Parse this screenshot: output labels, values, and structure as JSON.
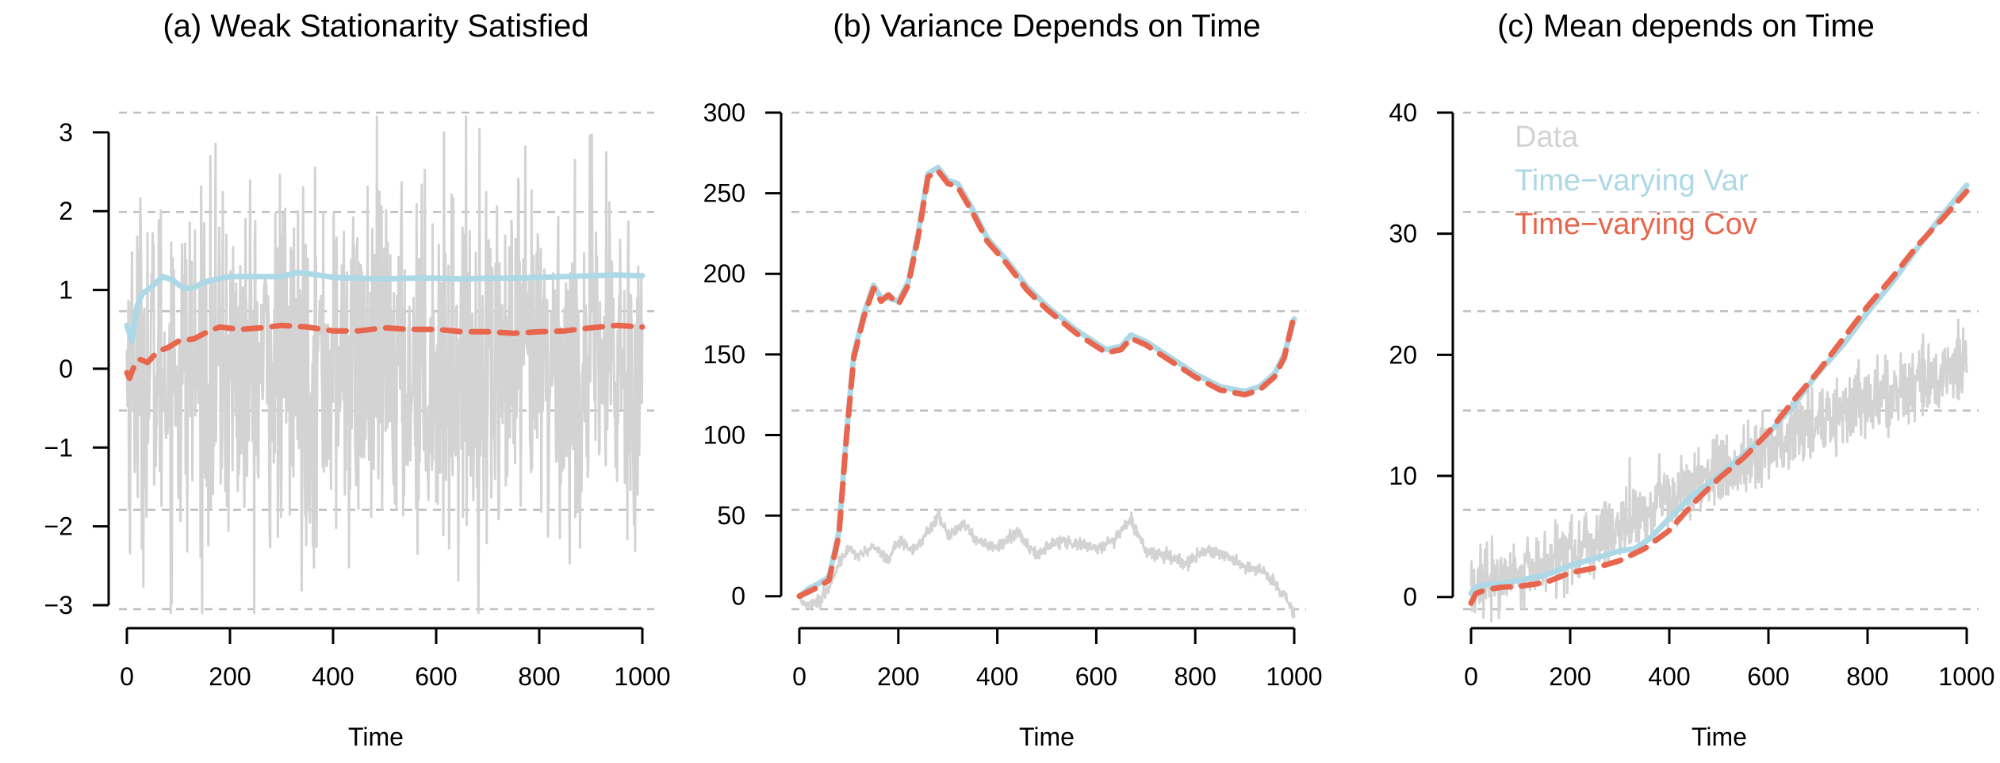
{
  "colors": {
    "data": "#d3d3d3",
    "var": "#add8e6",
    "cov": "#e8664d",
    "grid": "#bfbfbf",
    "axis": "#000000"
  },
  "legend": {
    "placement": "top-left of panel (c)",
    "entries": [
      {
        "label": "Data",
        "color": "#d3d3d3"
      },
      {
        "label": "Time−varying Var",
        "color": "#add8e6"
      },
      {
        "label": "Time−varying Cov",
        "color": "#e8664d"
      }
    ]
  },
  "chart_data": [
    {
      "type": "line",
      "title": "(a) Weak Stationarity Satisfied",
      "xlabel": "Time",
      "ylabel": "",
      "xlim": [
        0,
        1000
      ],
      "ylim": [
        -3.05,
        3.25
      ],
      "x_ticks": [
        "0",
        "200",
        "400",
        "600",
        "800",
        "1000"
      ],
      "y_ticks": [
        "−3",
        "−2",
        "−1",
        "0",
        "1",
        "2",
        "3"
      ],
      "grid": "horizontal dashed",
      "data_series": {
        "name": "Data",
        "kind": "noise",
        "mean": 0,
        "sd": 1.1,
        "range": [
          -3.1,
          3.2
        ]
      },
      "series": [
        {
          "name": "Time−varying Var",
          "style": "solid",
          "x": [
            0,
            10,
            20,
            30,
            50,
            70,
            90,
            110,
            130,
            150,
            170,
            200,
            250,
            300,
            330,
            360,
            400,
            450,
            500,
            550,
            600,
            650,
            700,
            750,
            800,
            850,
            900,
            950,
            1000
          ],
          "values": [
            0.55,
            0.35,
            0.8,
            0.95,
            1.05,
            1.17,
            1.12,
            1.02,
            1.03,
            1.1,
            1.13,
            1.17,
            1.17,
            1.17,
            1.22,
            1.2,
            1.16,
            1.15,
            1.14,
            1.15,
            1.15,
            1.14,
            1.15,
            1.15,
            1.16,
            1.17,
            1.18,
            1.19,
            1.18
          ]
        },
        {
          "name": "Time−varying Cov",
          "style": "dashed",
          "x": [
            0,
            5,
            15,
            25,
            40,
            60,
            80,
            100,
            130,
            160,
            180,
            220,
            260,
            300,
            350,
            400,
            450,
            500,
            550,
            600,
            650,
            700,
            750,
            800,
            850,
            900,
            950,
            1000
          ],
          "values": [
            -0.05,
            -0.12,
            0.05,
            0.12,
            0.08,
            0.22,
            0.27,
            0.35,
            0.38,
            0.48,
            0.53,
            0.5,
            0.52,
            0.55,
            0.53,
            0.48,
            0.48,
            0.52,
            0.5,
            0.5,
            0.47,
            0.47,
            0.45,
            0.47,
            0.48,
            0.52,
            0.55,
            0.53
          ]
        }
      ]
    },
    {
      "type": "line",
      "title": "(b) Variance Depends on Time",
      "xlabel": "Time",
      "ylabel": "",
      "xlim": [
        0,
        1000
      ],
      "ylim": [
        -8,
        300
      ],
      "x_ticks": [
        "0",
        "200",
        "400",
        "600",
        "800",
        "1000"
      ],
      "y_ticks": [
        "0",
        "50",
        "100",
        "150",
        "200",
        "250",
        "300"
      ],
      "grid": "horizontal dashed",
      "data_series": {
        "name": "Data",
        "kind": "random walk",
        "x": [
          0,
          20,
          40,
          60,
          80,
          100,
          120,
          150,
          180,
          200,
          230,
          260,
          280,
          300,
          330,
          360,
          400,
          440,
          480,
          520,
          560,
          600,
          640,
          670,
          700,
          740,
          780,
          820,
          860,
          900,
          940,
          960,
          980,
          1000
        ],
        "values": [
          -2,
          -5,
          -3,
          5,
          20,
          30,
          25,
          32,
          22,
          35,
          28,
          40,
          50,
          38,
          45,
          35,
          30,
          40,
          25,
          35,
          33,
          30,
          35,
          48,
          28,
          25,
          20,
          28,
          25,
          18,
          15,
          8,
          0,
          -10
        ]
      },
      "series": [
        {
          "name": "Time−varying Var",
          "style": "solid",
          "x": [
            0,
            20,
            40,
            60,
            80,
            95,
            110,
            130,
            150,
            165,
            180,
            200,
            220,
            240,
            260,
            280,
            300,
            320,
            350,
            380,
            420,
            460,
            500,
            560,
            620,
            650,
            670,
            700,
            750,
            800,
            850,
            900,
            930,
            960,
            980,
            1000
          ],
          "values": [
            0,
            5,
            8,
            12,
            40,
            100,
            150,
            175,
            193,
            185,
            185,
            183,
            195,
            225,
            262,
            266,
            258,
            256,
            240,
            222,
            208,
            192,
            180,
            165,
            153,
            155,
            162,
            158,
            148,
            138,
            130,
            127,
            130,
            138,
            150,
            172
          ]
        },
        {
          "name": "Time−varying Cov",
          "style": "dashed",
          "x": [
            0,
            20,
            40,
            60,
            80,
            95,
            110,
            130,
            150,
            165,
            180,
            200,
            220,
            240,
            260,
            280,
            300,
            320,
            350,
            380,
            420,
            460,
            500,
            560,
            620,
            650,
            670,
            700,
            750,
            800,
            850,
            900,
            930,
            960,
            980,
            1000
          ],
          "values": [
            0,
            3,
            6,
            10,
            38,
            98,
            148,
            173,
            191,
            183,
            187,
            181,
            193,
            223,
            260,
            264,
            256,
            254,
            238,
            220,
            206,
            190,
            178,
            163,
            151,
            153,
            160,
            156,
            146,
            136,
            128,
            125,
            128,
            136,
            148,
            175
          ]
        }
      ]
    },
    {
      "type": "line",
      "title": "(c) Mean depends on Time",
      "xlabel": "Time",
      "ylabel": "",
      "xlim": [
        0,
        1000
      ],
      "ylim": [
        -1,
        40
      ],
      "x_ticks": [
        "0",
        "200",
        "400",
        "600",
        "800",
        "1000"
      ],
      "y_ticks": [
        "0",
        "10",
        "20",
        "30",
        "40"
      ],
      "grid": "horizontal dashed",
      "data_series": {
        "name": "Data",
        "kind": "trend plus noise",
        "x": [
          0,
          100,
          200,
          300,
          400,
          500,
          600,
          700,
          800,
          900,
          1000
        ],
        "values": [
          0.5,
          2.0,
          3.5,
          5.5,
          8.0,
          10.5,
          12.5,
          14.5,
          16.0,
          17.5,
          19.5
        ],
        "noise_sd": 1.4
      },
      "series": [
        {
          "name": "Time−varying Var",
          "style": "solid",
          "x": [
            0,
            10,
            30,
            60,
            100,
            150,
            200,
            250,
            300,
            330,
            360,
            400,
            450,
            500,
            550,
            600,
            650,
            700,
            750,
            800,
            850,
            900,
            950,
            1000
          ],
          "values": [
            0.3,
            0.8,
            1.0,
            1.1,
            1.4,
            1.8,
            2.6,
            3.2,
            3.8,
            4.0,
            4.8,
            6.5,
            8.5,
            10.0,
            11.8,
            13.5,
            15.8,
            18.5,
            20.8,
            23.5,
            26.0,
            28.8,
            31.5,
            34.0
          ]
        },
        {
          "name": "Time−varying Cov",
          "style": "dashed",
          "x": [
            0,
            10,
            30,
            60,
            100,
            150,
            200,
            250,
            300,
            350,
            400,
            450,
            500,
            550,
            600,
            650,
            700,
            750,
            800,
            850,
            900,
            950,
            1000
          ],
          "values": [
            -0.5,
            0.3,
            0.6,
            0.8,
            0.9,
            1.2,
            2.0,
            2.4,
            3.0,
            4.0,
            5.5,
            7.8,
            9.8,
            11.5,
            13.6,
            16.2,
            18.6,
            21.3,
            24.0,
            26.4,
            29.0,
            31.2,
            33.5
          ]
        }
      ]
    }
  ]
}
